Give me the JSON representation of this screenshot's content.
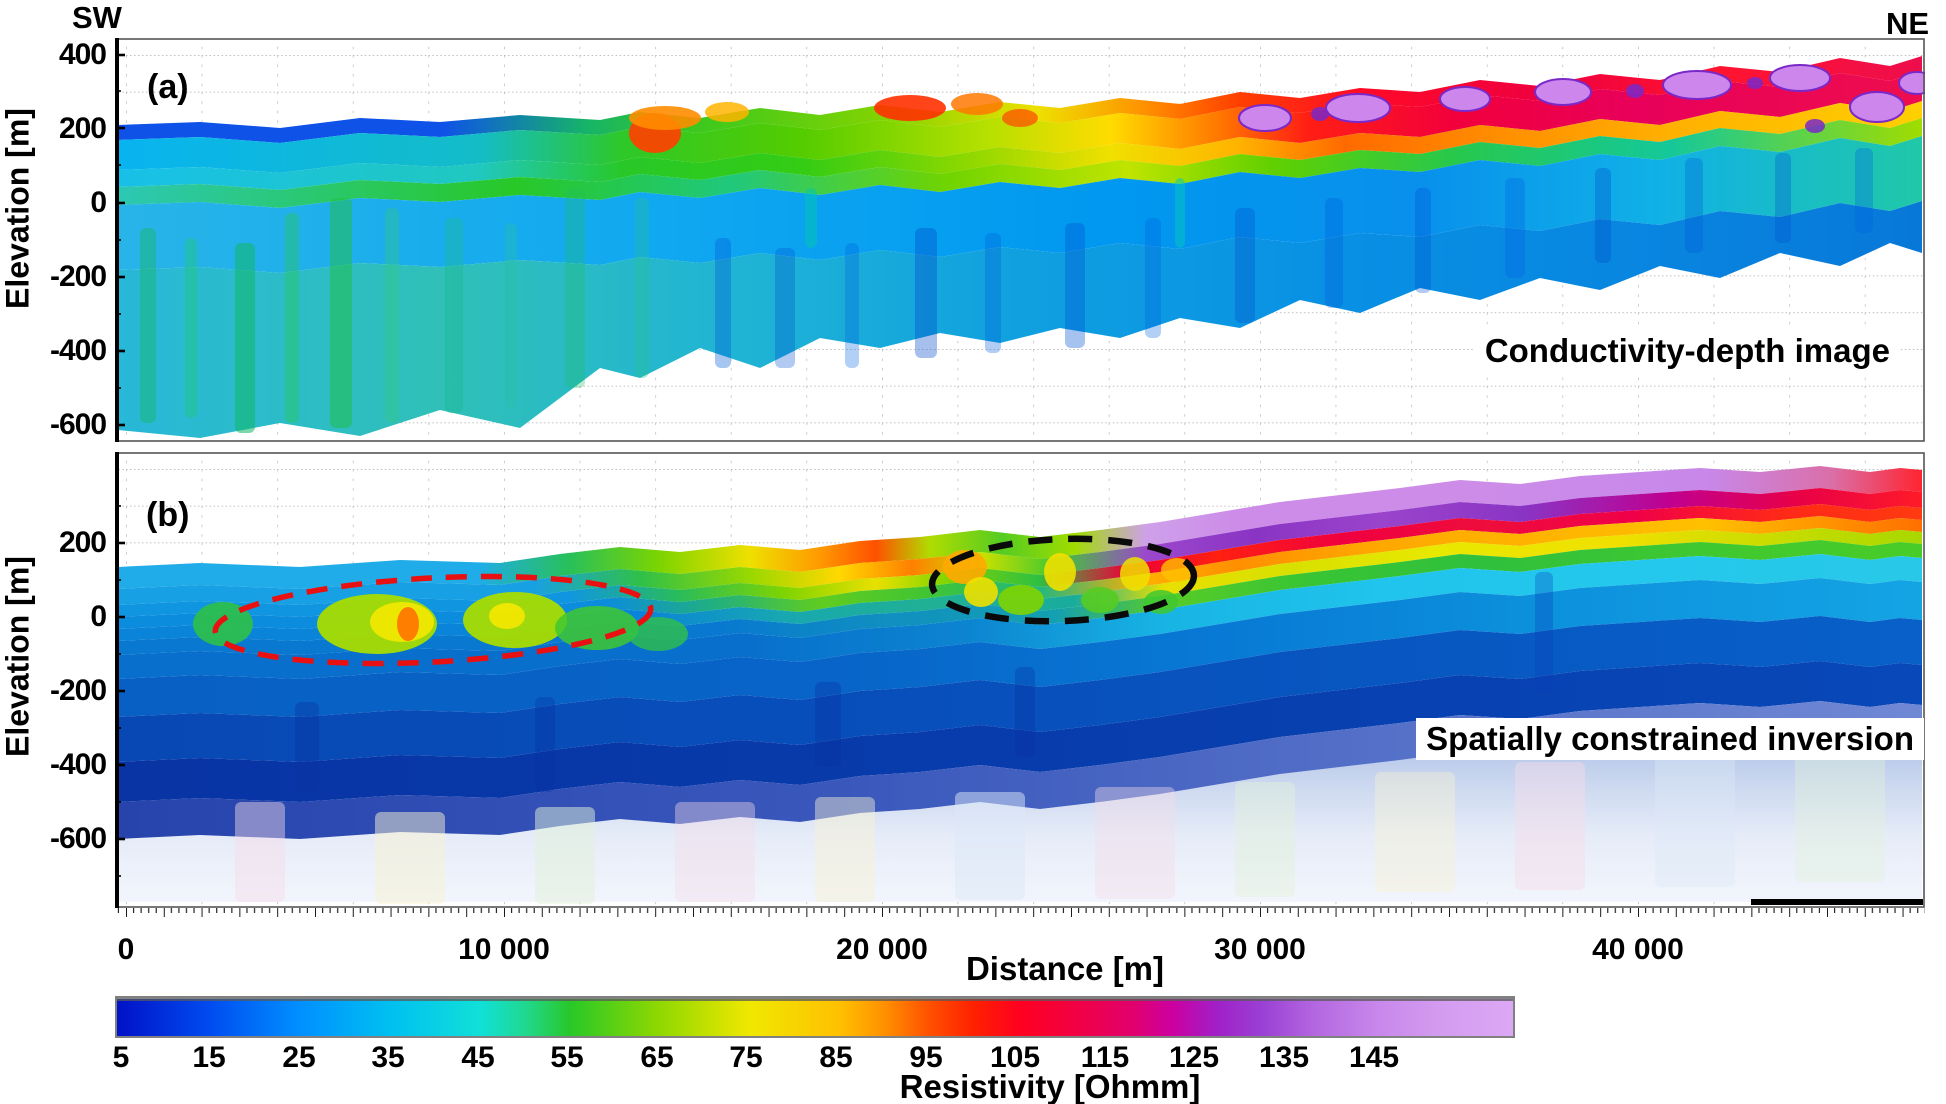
{
  "figure": {
    "orientation": {
      "left": "SW",
      "right": "NE"
    },
    "panel_a": {
      "tag": "(a)",
      "title": "Conductivity-depth image",
      "y_label": "Elevation [m]",
      "y_ticks": [
        "400",
        "200",
        "0",
        "-200",
        "-400",
        "-600"
      ]
    },
    "panel_b": {
      "tag": "(b)",
      "title": "Spatially constrained inversion",
      "y_label": "Elevation [m]",
      "y_ticks": [
        "200",
        "0",
        "-200",
        "-400",
        "-600"
      ]
    },
    "x_axis": {
      "label": "Distance [m]",
      "ticks": [
        "0",
        "10 000",
        "20 000",
        "30 000",
        "40 000"
      ]
    },
    "colorbar": {
      "label": "Resistivity [Ohmm]",
      "ticks": [
        "5",
        "15",
        "25",
        "35",
        "45",
        "55",
        "65",
        "75",
        "85",
        "95",
        "105",
        "115",
        "125",
        "135",
        "145"
      ]
    }
  },
  "chart_data": {
    "type": "heatmap",
    "orientation": {
      "left": "SW",
      "right": "NE"
    },
    "x": {
      "label": "Distance [m]",
      "range_m": [
        0,
        47500
      ],
      "ticks_m": [
        0,
        10000,
        20000,
        30000,
        40000
      ]
    },
    "panels": [
      {
        "id": "a",
        "tag": "(a)",
        "title": "Conductivity-depth image",
        "y": {
          "label": "Elevation [m]",
          "range_m": [
            -640,
            450
          ],
          "ticks_m": [
            400,
            200,
            0,
            -200,
            -400,
            -600
          ]
        },
        "description_visible": "Colored ribbon follows rising terrain SW to NE; low-resistivity blues/cyans with green streaks at SW, high-resistivity red/magenta with lavender patches near surface at NE, fading to white at depth."
      },
      {
        "id": "b",
        "tag": "(b)",
        "title": "Spatially constrained inversion",
        "y": {
          "label": "Elevation [m]",
          "range_m": [
            -790,
            430
          ],
          "ticks_m": [
            200,
            0,
            -200,
            -400,
            -600
          ]
        },
        "description_visible": "Smooth layered model: lavender/purple/red/orange/yellow/green cap over cyan-blue-navy body, fading to pale pastel at depth; green-yellow anomalies inside two dashed ellipses."
      }
    ],
    "surface_elevation_profile_m": [
      [
        0,
        135
      ],
      [
        5000,
        145
      ],
      [
        10000,
        150
      ],
      [
        15000,
        170
      ],
      [
        20000,
        205
      ],
      [
        25000,
        230
      ],
      [
        28000,
        265
      ],
      [
        32000,
        300
      ],
      [
        36000,
        330
      ],
      [
        40000,
        345
      ],
      [
        44000,
        360
      ],
      [
        47500,
        380
      ]
    ],
    "annotations": [
      {
        "shape": "dashed-ellipse",
        "panel": "b",
        "color": "#E81010",
        "distance_range_m": [
          2400,
          13900
        ],
        "elevation_range_m": [
          -120,
          105
        ]
      },
      {
        "shape": "dashed-ellipse",
        "panel": "b",
        "color": "#000000",
        "distance_range_m": [
          21400,
          28300
        ],
        "elevation_range_m": [
          -10,
          200
        ]
      }
    ],
    "colorbar": {
      "label": "Resistivity [Ohmm]",
      "ticks": [
        5,
        15,
        25,
        35,
        45,
        55,
        65,
        75,
        85,
        95,
        105,
        115,
        125,
        135,
        145
      ],
      "value_range": [
        4.5,
        160
      ],
      "colormap": [
        [
          5,
          "#0014C8"
        ],
        [
          15,
          "#004CF0"
        ],
        [
          25,
          "#0090FF"
        ],
        [
          35,
          "#00C0F0"
        ],
        [
          45,
          "#10E0D8"
        ],
        [
          50,
          "#20D890"
        ],
        [
          55,
          "#28C828"
        ],
        [
          65,
          "#90D800"
        ],
        [
          75,
          "#F0E800"
        ],
        [
          85,
          "#FFC000"
        ],
        [
          90,
          "#FF9000"
        ],
        [
          95,
          "#FF5000"
        ],
        [
          100,
          "#FF2000"
        ],
        [
          105,
          "#FF0020"
        ],
        [
          112,
          "#F00048"
        ],
        [
          118,
          "#E00070"
        ],
        [
          122,
          "#CC00A0"
        ],
        [
          127,
          "#A020C8"
        ],
        [
          132,
          "#9A40D4"
        ],
        [
          138,
          "#B468E0"
        ],
        [
          145,
          "#C888EC"
        ],
        [
          152,
          "#D49CF0"
        ],
        [
          160,
          "#DCA8F4"
        ]
      ]
    }
  }
}
